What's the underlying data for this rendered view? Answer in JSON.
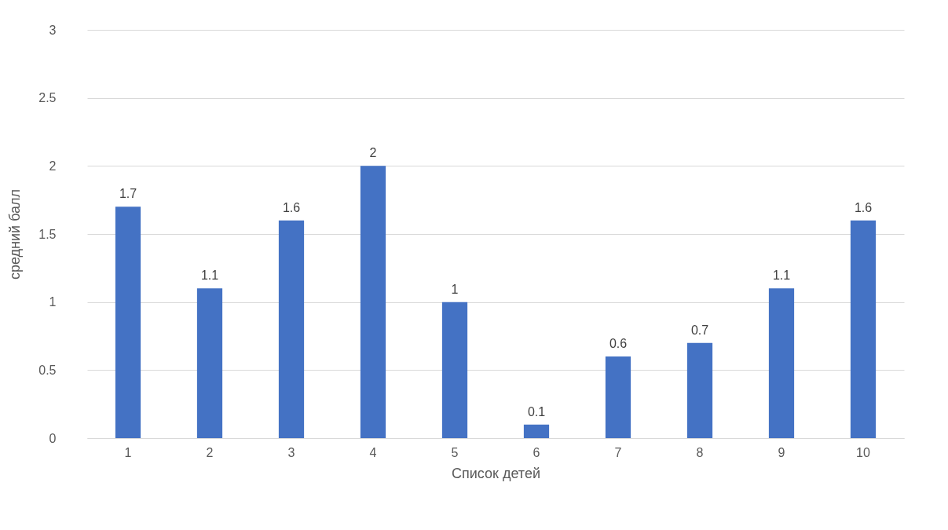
{
  "chart_data": {
    "type": "bar",
    "xlabel": "Список детей",
    "ylabel": "средний балл",
    "categories": [
      "1",
      "2",
      "3",
      "4",
      "5",
      "6",
      "7",
      "8",
      "9",
      "10"
    ],
    "series": [
      {
        "color": "#4472c4",
        "values": [
          1.7,
          1.1,
          1.6,
          2,
          1,
          0.1,
          0.6,
          0.7,
          1.1,
          1.6
        ]
      }
    ],
    "ylim": [
      0,
      3
    ],
    "yticks": [
      0,
      0.5,
      1,
      1.5,
      2,
      2.5,
      3
    ],
    "grid": "y",
    "data_labels": true
  }
}
